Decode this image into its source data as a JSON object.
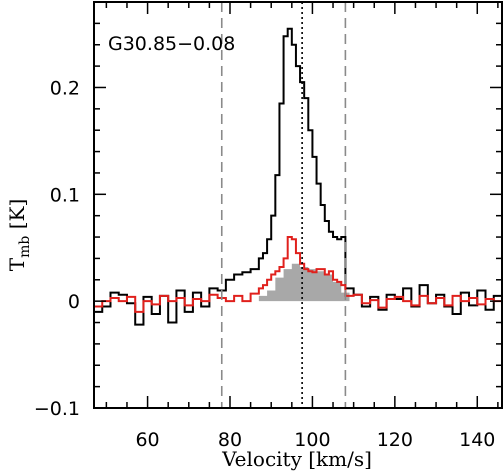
{
  "chart_data": {
    "type": "line",
    "title": "G30.85−0.08",
    "xlabel": "Velocity [km/s]",
    "ylabel_main": "T",
    "ylabel_sub": "mb",
    "ylabel_unit": " [K]",
    "xlim": [
      47,
      146
    ],
    "ylim": [
      -0.1,
      0.28
    ],
    "xticks": [
      60,
      80,
      100,
      120,
      140
    ],
    "xtick_labels": [
      "60",
      "80",
      "100",
      "120",
      "140"
    ],
    "yticks": [
      -0.1,
      0,
      0.1,
      0.2
    ],
    "ytick_labels": [
      "−0.1",
      "0",
      "0.1",
      "0.2"
    ],
    "series": [
      {
        "color": "#000000",
        "step": true,
        "x": [
          47,
          49,
          51,
          53,
          55,
          57,
          59,
          61,
          63,
          65,
          67,
          69,
          71,
          73,
          75,
          77,
          79,
          81,
          83,
          85,
          87,
          88,
          89,
          90,
          91,
          92,
          93,
          94,
          95,
          96,
          97,
          98,
          99,
          100,
          101,
          102,
          103,
          104,
          105,
          106,
          107,
          108,
          110,
          112,
          114,
          116,
          118,
          120,
          122,
          124,
          126,
          128,
          130,
          132,
          134,
          136,
          138,
          140,
          142,
          144,
          146
        ],
        "y": [
          -0.01,
          -0.005,
          0.008,
          0.006,
          -0.002,
          -0.022,
          0.004,
          -0.012,
          0.005,
          -0.02,
          0.01,
          -0.01,
          0.008,
          -0.005,
          0.012,
          0.01,
          0.02,
          0.025,
          0.027,
          0.03,
          0.04,
          0.045,
          0.058,
          0.08,
          0.118,
          0.185,
          0.248,
          0.255,
          0.24,
          0.22,
          0.205,
          0.19,
          0.16,
          0.135,
          0.11,
          0.09,
          0.075,
          0.065,
          0.06,
          0.058,
          0.06,
          0.012,
          0.006,
          -0.005,
          0.004,
          -0.008,
          0.006,
          0.002,
          0.012,
          -0.005,
          0.015,
          -0.002,
          0.006,
          -0.005,
          -0.012,
          0.008,
          -0.004,
          0.01,
          -0.008,
          0.005,
          0.0
        ]
      },
      {
        "color": "#e0201c",
        "step": true,
        "x": [
          47,
          49,
          51,
          53,
          55,
          57,
          59,
          61,
          63,
          65,
          67,
          69,
          71,
          73,
          75,
          77,
          79,
          81,
          83,
          85,
          87,
          88,
          89,
          90,
          91,
          92,
          93,
          94,
          95,
          96,
          97,
          98,
          99,
          100,
          101,
          102,
          103,
          104,
          105,
          106,
          107,
          108,
          110,
          112,
          114,
          116,
          118,
          120,
          122,
          124,
          126,
          128,
          130,
          132,
          134,
          136,
          138,
          140,
          142,
          144,
          146
        ],
        "y": [
          -0.005,
          0.0,
          0.003,
          0.0,
          0.004,
          -0.01,
          0.0,
          -0.003,
          0.005,
          0.0,
          0.003,
          -0.004,
          0.002,
          0.0,
          0.006,
          0.003,
          0.0,
          0.005,
          0.0,
          0.007,
          0.012,
          0.015,
          0.02,
          0.025,
          0.028,
          0.032,
          0.04,
          0.06,
          0.058,
          0.045,
          0.035,
          0.03,
          0.028,
          0.027,
          0.03,
          0.03,
          0.025,
          0.028,
          0.02,
          0.018,
          0.015,
          0.005,
          0.006,
          -0.002,
          0.001,
          -0.006,
          0.002,
          0.004,
          0.0,
          -0.004,
          0.005,
          -0.002,
          0.003,
          -0.004,
          0.005,
          0.0,
          0.003,
          -0.003,
          0.002,
          0.0,
          -0.003
        ]
      }
    ],
    "fill": {
      "color": "#a8a8a8",
      "x": [
        87,
        89,
        91,
        93,
        95,
        97,
        99,
        101,
        103,
        105,
        107
      ],
      "y": [
        0.005,
        0.01,
        0.022,
        0.03,
        0.035,
        0.032,
        0.03,
        0.028,
        0.025,
        0.018,
        0.008
      ]
    },
    "vlines": [
      {
        "x": 78,
        "style": "dashed",
        "color": "#8a8a8a"
      },
      {
        "x": 97.5,
        "style": "dotted",
        "color": "#000000"
      },
      {
        "x": 108,
        "style": "dashed",
        "color": "#8a8a8a"
      }
    ]
  }
}
